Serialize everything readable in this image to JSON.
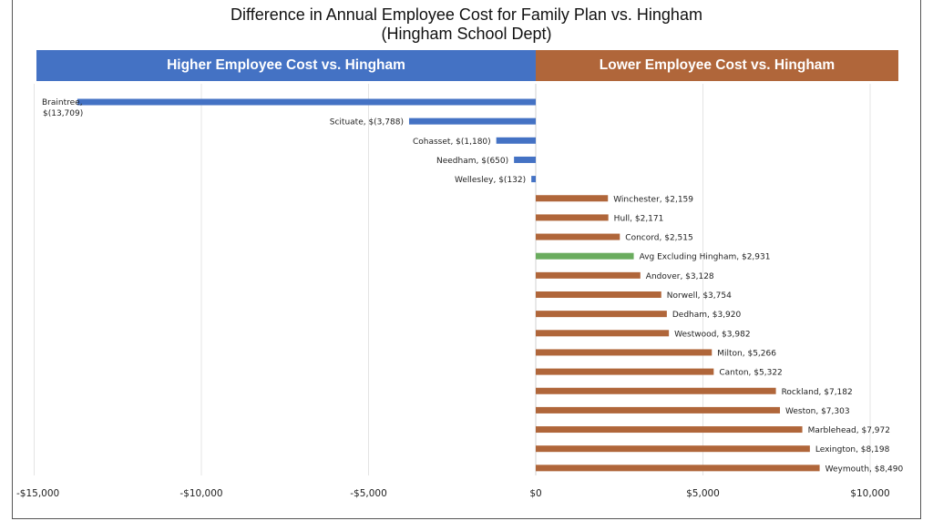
{
  "chart_data": {
    "type": "bar",
    "orientation": "horizontal",
    "title": "Difference in Annual Employee Cost for Family Plan vs. Hingham",
    "subtitle": "(Hingham School Dept)",
    "xlabel": "",
    "ylabel": "",
    "xlim": [
      -15000,
      10800
    ],
    "grid": true,
    "legend": "none",
    "bands": [
      {
        "label": "Higher Employee Cost vs. Hingham",
        "side": "negative",
        "color": "#4472c4"
      },
      {
        "label": "Lower Employee Cost vs. Hingham",
        "side": "positive",
        "color": "#b0663a"
      }
    ],
    "x_ticks": [
      {
        "value": -15000,
        "label": "-$15,000"
      },
      {
        "value": -10000,
        "label": "-$10,000"
      },
      {
        "value": -5000,
        "label": "-$5,000"
      },
      {
        "value": 0,
        "label": "$0"
      },
      {
        "value": 5000,
        "label": "$5,000"
      },
      {
        "value": 10000,
        "label": "$10,000"
      }
    ],
    "colors": {
      "negative": "#4472c4",
      "positive": "#b0663a",
      "average": "#6aac5e"
    },
    "categories": [
      "Braintree",
      "Scituate",
      "Cohasset",
      "Needham",
      "Wellesley",
      "Winchester",
      "Hull",
      "Concord",
      "Avg Excluding Hingham",
      "Andover",
      "Norwell",
      "Dedham",
      "Westwood",
      "Milton",
      "Canton",
      "Rockland",
      "Weston",
      "Marblehead",
      "Lexington",
      "Weymouth"
    ],
    "values": [
      -13709,
      -3788,
      -1180,
      -650,
      -132,
      2159,
      2171,
      2515,
      2931,
      3128,
      3754,
      3920,
      3982,
      5266,
      5322,
      7182,
      7303,
      7972,
      8198,
      8490
    ],
    "data_labels": [
      "Braintree, $(13,709)",
      "Scituate, $(3,788)",
      "Cohasset, $(1,180)",
      "Needham, $(650)",
      "Wellesley, $(132)",
      "Winchester, $2,159",
      "Hull, $2,171",
      "Concord, $2,515",
      "Avg Excluding Hingham, $2,931",
      "Andover, $3,128",
      "Norwell, $3,754",
      "Dedham, $3,920",
      "Westwood, $3,982",
      "Milton, $5,266",
      "Canton, $5,322",
      "Rockland, $7,182",
      "Weston, $7,303",
      "Marblehead, $7,972",
      "Lexington, $8,198",
      "Weymouth, $8,490"
    ],
    "highlight": "Avg Excluding Hingham"
  }
}
